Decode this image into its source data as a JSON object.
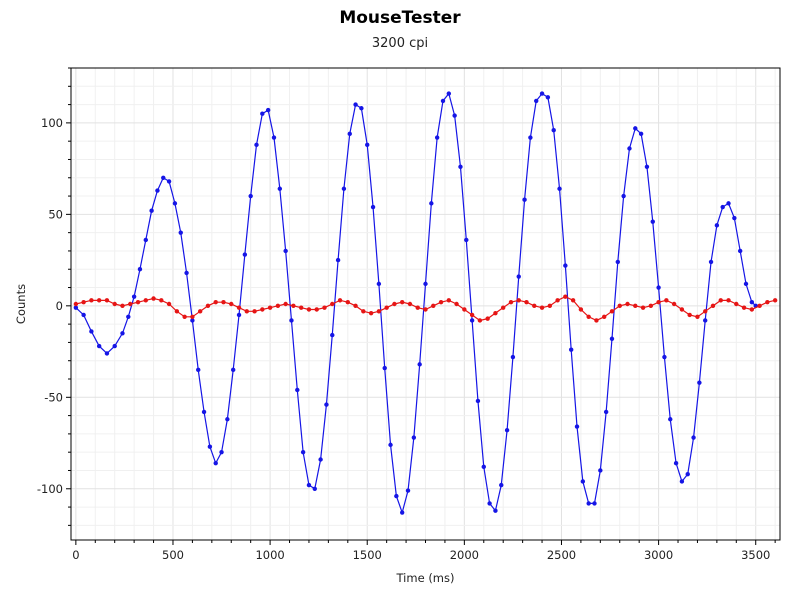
{
  "chart_data": {
    "type": "scatter",
    "title": "MouseTester",
    "subtitle": "3200 cpi",
    "xlabel": "Time (ms)",
    "ylabel": "Counts",
    "xlim": [
      -25,
      3625
    ],
    "ylim": [
      -128,
      130
    ],
    "x_ticks": [
      0,
      500,
      1000,
      1500,
      2000,
      2500,
      3000,
      3500
    ],
    "y_ticks": [
      -100,
      -50,
      0,
      50,
      100
    ],
    "grid": true,
    "series": [
      {
        "color": "#1515e6",
        "line": true,
        "points": [
          [
            0,
            -1
          ],
          [
            40,
            -5
          ],
          [
            80,
            -14
          ],
          [
            120,
            -22
          ],
          [
            160,
            -26
          ],
          [
            200,
            -22
          ],
          [
            240,
            -15
          ],
          [
            270,
            -6
          ],
          [
            300,
            5
          ],
          [
            330,
            20
          ],
          [
            360,
            36
          ],
          [
            390,
            52
          ],
          [
            420,
            63
          ],
          [
            450,
            70
          ],
          [
            480,
            68
          ],
          [
            510,
            56
          ],
          [
            540,
            40
          ],
          [
            570,
            18
          ],
          [
            600,
            -8
          ],
          [
            630,
            -35
          ],
          [
            660,
            -58
          ],
          [
            690,
            -77
          ],
          [
            720,
            -86
          ],
          [
            750,
            -80
          ],
          [
            780,
            -62
          ],
          [
            810,
            -35
          ],
          [
            840,
            -5
          ],
          [
            870,
            28
          ],
          [
            900,
            60
          ],
          [
            930,
            88
          ],
          [
            960,
            105
          ],
          [
            990,
            107
          ],
          [
            1020,
            92
          ],
          [
            1050,
            64
          ],
          [
            1080,
            30
          ],
          [
            1110,
            -8
          ],
          [
            1140,
            -46
          ],
          [
            1170,
            -80
          ],
          [
            1200,
            -98
          ],
          [
            1230,
            -100
          ],
          [
            1260,
            -84
          ],
          [
            1290,
            -54
          ],
          [
            1320,
            -16
          ],
          [
            1350,
            25
          ],
          [
            1380,
            64
          ],
          [
            1410,
            94
          ],
          [
            1440,
            110
          ],
          [
            1470,
            108
          ],
          [
            1500,
            88
          ],
          [
            1530,
            54
          ],
          [
            1560,
            12
          ],
          [
            1590,
            -34
          ],
          [
            1620,
            -76
          ],
          [
            1650,
            -104
          ],
          [
            1680,
            -113
          ],
          [
            1710,
            -101
          ],
          [
            1740,
            -72
          ],
          [
            1770,
            -32
          ],
          [
            1800,
            12
          ],
          [
            1830,
            56
          ],
          [
            1860,
            92
          ],
          [
            1890,
            112
          ],
          [
            1920,
            116
          ],
          [
            1950,
            104
          ],
          [
            1980,
            76
          ],
          [
            2010,
            36
          ],
          [
            2040,
            -8
          ],
          [
            2070,
            -52
          ],
          [
            2100,
            -88
          ],
          [
            2130,
            -108
          ],
          [
            2160,
            -112
          ],
          [
            2190,
            -98
          ],
          [
            2220,
            -68
          ],
          [
            2250,
            -28
          ],
          [
            2280,
            16
          ],
          [
            2310,
            58
          ],
          [
            2340,
            92
          ],
          [
            2370,
            112
          ],
          [
            2400,
            116
          ],
          [
            2430,
            114
          ],
          [
            2460,
            96
          ],
          [
            2490,
            64
          ],
          [
            2520,
            22
          ],
          [
            2550,
            -24
          ],
          [
            2580,
            -66
          ],
          [
            2610,
            -96
          ],
          [
            2640,
            -108
          ],
          [
            2670,
            -108
          ],
          [
            2700,
            -90
          ],
          [
            2730,
            -58
          ],
          [
            2760,
            -18
          ],
          [
            2790,
            24
          ],
          [
            2820,
            60
          ],
          [
            2850,
            86
          ],
          [
            2880,
            97
          ],
          [
            2910,
            94
          ],
          [
            2940,
            76
          ],
          [
            2970,
            46
          ],
          [
            3000,
            10
          ],
          [
            3030,
            -28
          ],
          [
            3060,
            -62
          ],
          [
            3090,
            -86
          ],
          [
            3120,
            -96
          ],
          [
            3150,
            -92
          ],
          [
            3180,
            -72
          ],
          [
            3210,
            -42
          ],
          [
            3240,
            -8
          ],
          [
            3270,
            24
          ],
          [
            3300,
            44
          ],
          [
            3330,
            54
          ],
          [
            3360,
            56
          ],
          [
            3390,
            48
          ],
          [
            3420,
            30
          ],
          [
            3450,
            12
          ],
          [
            3480,
            2
          ],
          [
            3500,
            0
          ]
        ]
      },
      {
        "color": "#e61515",
        "line": true,
        "points": [
          [
            0,
            1
          ],
          [
            40,
            2
          ],
          [
            80,
            3
          ],
          [
            120,
            3
          ],
          [
            160,
            3
          ],
          [
            200,
            1
          ],
          [
            240,
            0
          ],
          [
            280,
            1
          ],
          [
            320,
            2
          ],
          [
            360,
            3
          ],
          [
            400,
            4
          ],
          [
            440,
            3
          ],
          [
            480,
            1
          ],
          [
            520,
            -3
          ],
          [
            560,
            -6
          ],
          [
            600,
            -6
          ],
          [
            640,
            -3
          ],
          [
            680,
            0
          ],
          [
            720,
            2
          ],
          [
            760,
            2
          ],
          [
            800,
            1
          ],
          [
            840,
            -1
          ],
          [
            880,
            -3
          ],
          [
            920,
            -3
          ],
          [
            960,
            -2
          ],
          [
            1000,
            -1
          ],
          [
            1040,
            0
          ],
          [
            1080,
            1
          ],
          [
            1120,
            0
          ],
          [
            1160,
            -1
          ],
          [
            1200,
            -2
          ],
          [
            1240,
            -2
          ],
          [
            1280,
            -1
          ],
          [
            1320,
            1
          ],
          [
            1360,
            3
          ],
          [
            1400,
            2
          ],
          [
            1440,
            0
          ],
          [
            1480,
            -3
          ],
          [
            1520,
            -4
          ],
          [
            1560,
            -3
          ],
          [
            1600,
            -1
          ],
          [
            1640,
            1
          ],
          [
            1680,
            2
          ],
          [
            1720,
            1
          ],
          [
            1760,
            -1
          ],
          [
            1800,
            -2
          ],
          [
            1840,
            0
          ],
          [
            1880,
            2
          ],
          [
            1920,
            3
          ],
          [
            1960,
            1
          ],
          [
            2000,
            -2
          ],
          [
            2040,
            -5
          ],
          [
            2080,
            -8
          ],
          [
            2120,
            -7
          ],
          [
            2160,
            -4
          ],
          [
            2200,
            -1
          ],
          [
            2240,
            2
          ],
          [
            2280,
            3
          ],
          [
            2320,
            2
          ],
          [
            2360,
            0
          ],
          [
            2400,
            -1
          ],
          [
            2440,
            0
          ],
          [
            2480,
            3
          ],
          [
            2520,
            5
          ],
          [
            2560,
            3
          ],
          [
            2600,
            -2
          ],
          [
            2640,
            -6
          ],
          [
            2680,
            -8
          ],
          [
            2720,
            -6
          ],
          [
            2760,
            -3
          ],
          [
            2800,
            0
          ],
          [
            2840,
            1
          ],
          [
            2880,
            0
          ],
          [
            2920,
            -1
          ],
          [
            2960,
            0
          ],
          [
            3000,
            2
          ],
          [
            3040,
            3
          ],
          [
            3080,
            1
          ],
          [
            3120,
            -2
          ],
          [
            3160,
            -5
          ],
          [
            3200,
            -6
          ],
          [
            3240,
            -3
          ],
          [
            3280,
            0
          ],
          [
            3320,
            3
          ],
          [
            3360,
            3
          ],
          [
            3400,
            1
          ],
          [
            3440,
            -1
          ],
          [
            3480,
            -2
          ],
          [
            3520,
            0
          ],
          [
            3560,
            2
          ],
          [
            3600,
            3
          ]
        ]
      }
    ]
  }
}
